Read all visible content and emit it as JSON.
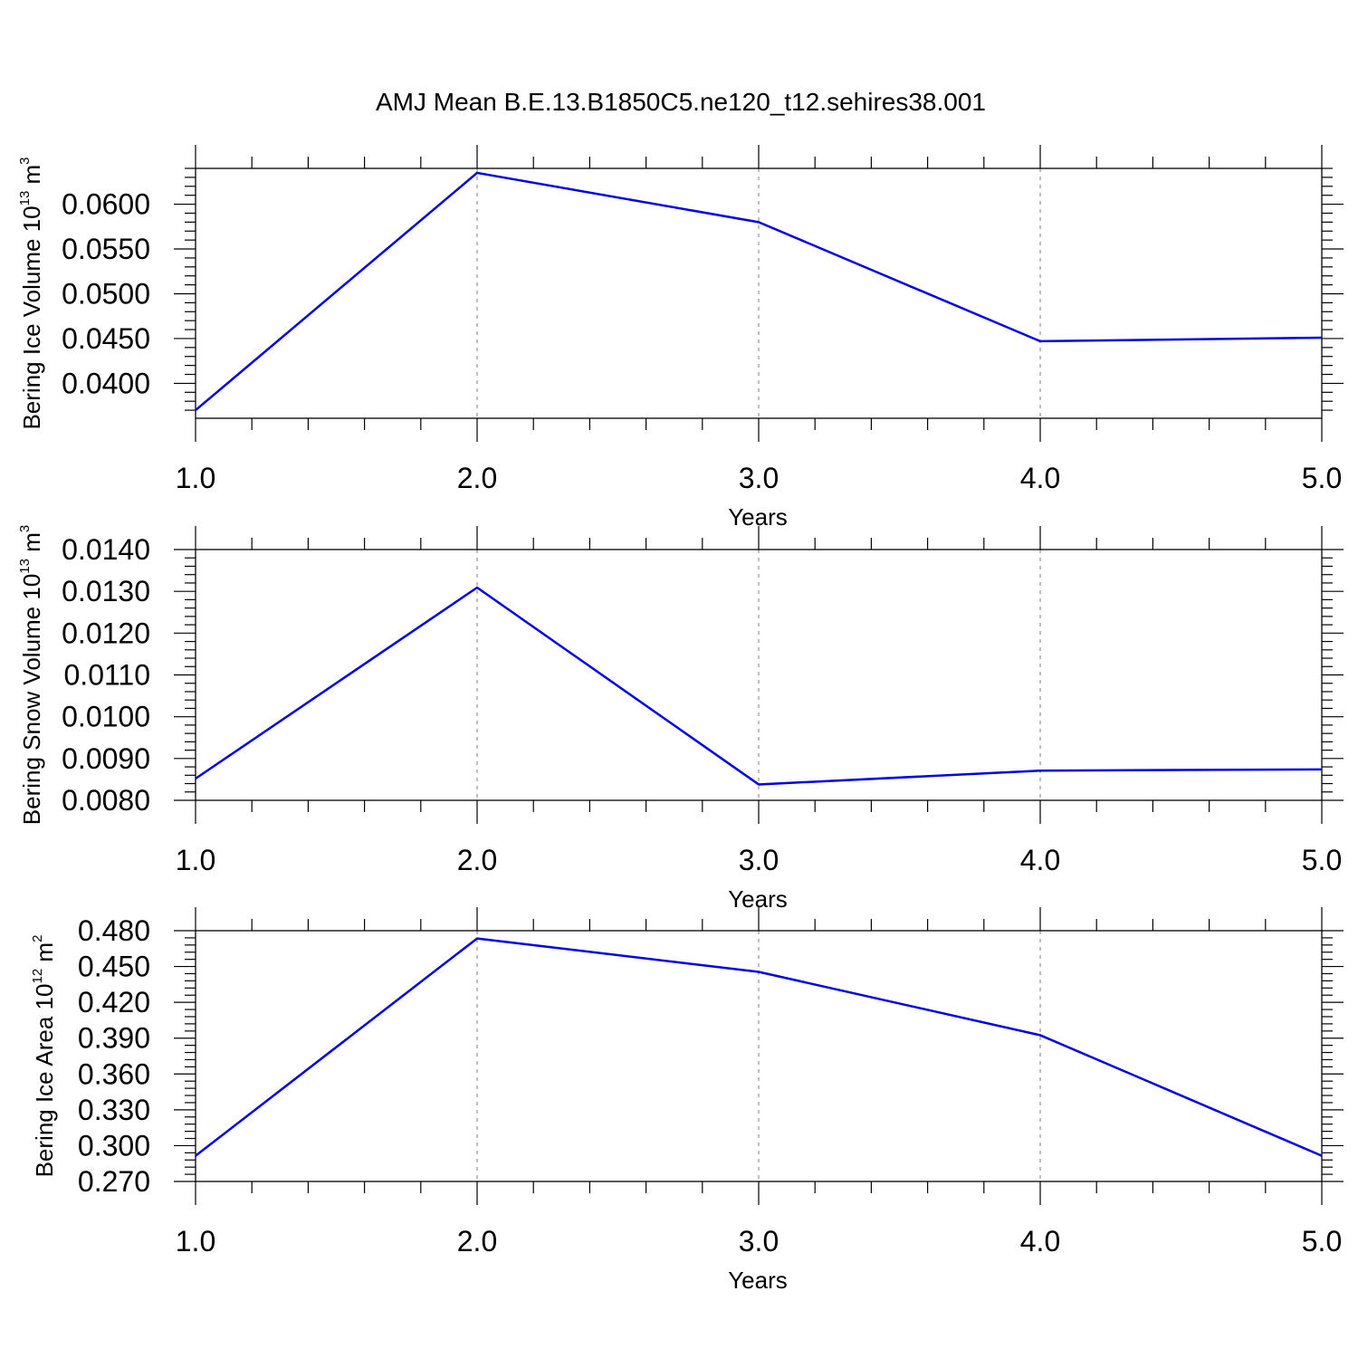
{
  "title": "AMJ Mean B.E.13.B1850C5.ne120_t12.sehires38.001",
  "chart_data": [
    {
      "type": "line",
      "ylabel": {
        "base": "Bering Ice Volume 10",
        "exp": "13",
        "unit": " m",
        "unit_exp": "3"
      },
      "xlabel": "Years",
      "x_ticks": [
        "1.0",
        "2.0",
        "3.0",
        "4.0",
        "5.0"
      ],
      "y_ticks": [
        "0.0400",
        "0.0450",
        "0.0500",
        "0.0550",
        "0.0600"
      ],
      "xlim": [
        1.0,
        5.0
      ],
      "ylim": [
        0.0361,
        0.064
      ],
      "x": [
        1.0,
        2.0,
        3.0,
        4.0,
        5.0
      ],
      "y": [
        0.037,
        0.0635,
        0.058,
        0.0447,
        0.0451
      ],
      "line_color": "#0000e6",
      "grid": "vertical-dashed"
    },
    {
      "type": "line",
      "ylabel": {
        "base": "Bering Snow Volume 10",
        "exp": "13",
        "unit": " m",
        "unit_exp": "3"
      },
      "xlabel": "Years",
      "x_ticks": [
        "1.0",
        "2.0",
        "3.0",
        "4.0",
        "5.0"
      ],
      "y_ticks": [
        "0.0080",
        "0.0090",
        "0.0100",
        "0.0110",
        "0.0120",
        "0.0130",
        "0.0140"
      ],
      "xlim": [
        1.0,
        5.0
      ],
      "ylim": [
        0.008,
        0.014
      ],
      "x": [
        1.0,
        2.0,
        3.0,
        4.0,
        5.0
      ],
      "y": [
        0.00852,
        0.01309,
        0.00838,
        0.00871,
        0.00874
      ],
      "line_color": "#0000e6",
      "grid": "vertical-dashed"
    },
    {
      "type": "line",
      "ylabel": {
        "base": "Bering Ice Area 10",
        "exp": "12",
        "unit": " m",
        "unit_exp": "2"
      },
      "xlabel": "Years",
      "x_ticks": [
        "1.0",
        "2.0",
        "3.0",
        "4.0",
        "5.0"
      ],
      "y_ticks": [
        "0.270",
        "0.300",
        "0.330",
        "0.360",
        "0.390",
        "0.420",
        "0.450",
        "0.480"
      ],
      "xlim": [
        1.0,
        5.0
      ],
      "ylim": [
        0.27,
        0.48
      ],
      "x": [
        1.0,
        2.0,
        3.0,
        4.0,
        5.0
      ],
      "y": [
        0.2915,
        0.4735,
        0.4455,
        0.3925,
        0.2915
      ],
      "line_color": "#0000e6",
      "grid": "vertical-dashed"
    }
  ]
}
